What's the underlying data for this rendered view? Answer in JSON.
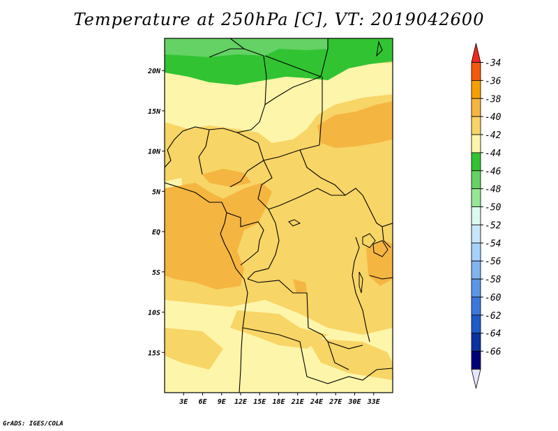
{
  "title": "Temperature at 250hPa [C], VT: 2019042600",
  "credit": "GrADS: IGES/COLA",
  "map": {
    "lon_range": [
      0,
      36
    ],
    "lat_range": [
      -20,
      24
    ],
    "lon_ticks": [
      "3E",
      "6E",
      "9E",
      "12E",
      "15E",
      "18E",
      "21E",
      "24E",
      "27E",
      "30E",
      "33E"
    ],
    "lat_ticks": [
      "20N",
      "15N",
      "10N",
      "5N",
      "EQ",
      "5S",
      "10S",
      "15S"
    ]
  },
  "colorbar": {
    "labels": [
      "-34",
      "-36",
      "-38",
      "-40",
      "-42",
      "-44",
      "-46",
      "-48",
      "-50",
      "-52",
      "-54",
      "-56",
      "-58",
      "-60",
      "-62",
      "-64",
      "-66"
    ],
    "colors": [
      "#f0281e",
      "#f55a0a",
      "#f5a000",
      "#f5b541",
      "#f7d566",
      "#fdf5aa",
      "#32c332",
      "#64d264",
      "#96e696",
      "#dcfaf0",
      "#c8e6fa",
      "#a5d2fa",
      "#82b4f0",
      "#5a96e6",
      "#3c78dc",
      "#1e5ac8",
      "#0a32a0",
      "#000078",
      "#e6e6fa"
    ]
  }
}
